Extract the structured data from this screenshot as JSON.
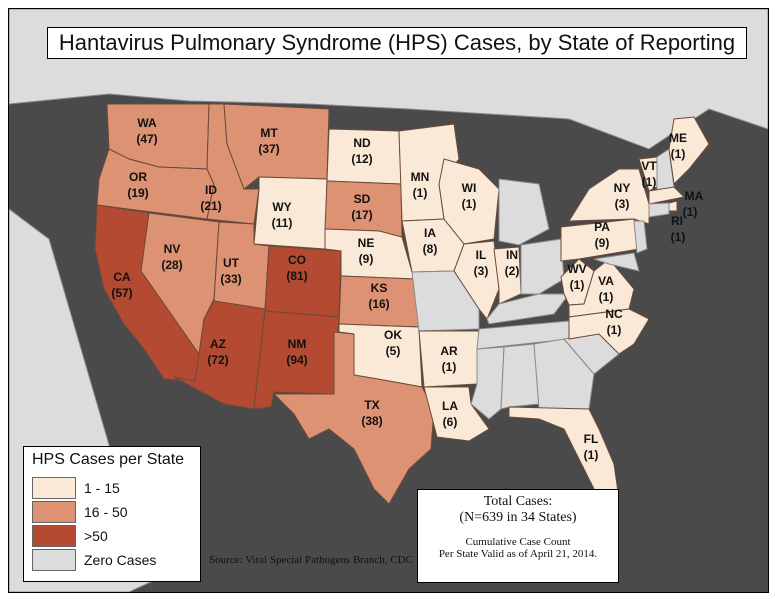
{
  "title": "Hantavirus Pulmonary Syndrome (HPS) Cases, by State of Reporting",
  "colors": {
    "low": "#fbe9d8",
    "mid": "#dd9274",
    "high": "#b44a32",
    "zero": "#dcdcdc",
    "background": "#4a4a4a"
  },
  "legend": {
    "title": "HPS Cases per State",
    "items": [
      {
        "label": "1 - 15",
        "color": "#fbe9d8"
      },
      {
        "label": "16 - 50",
        "color": "#dd9274"
      },
      {
        "label": ">50",
        "color": "#b44a32"
      },
      {
        "label": "Zero Cases",
        "color": "#dcdcdc"
      }
    ]
  },
  "states": {
    "WA": {
      "abbr": "WA",
      "cases": "(47)"
    },
    "OR": {
      "abbr": "OR",
      "cases": "(19)"
    },
    "CA": {
      "abbr": "CA",
      "cases": "(57)"
    },
    "ID": {
      "abbr": "ID",
      "cases": "(21)"
    },
    "NV": {
      "abbr": "NV",
      "cases": "(28)"
    },
    "MT": {
      "abbr": "MT",
      "cases": "(37)"
    },
    "WY": {
      "abbr": "WY",
      "cases": "(11)"
    },
    "UT": {
      "abbr": "UT",
      "cases": "(33)"
    },
    "AZ": {
      "abbr": "AZ",
      "cases": "(72)"
    },
    "CO": {
      "abbr": "CO",
      "cases": "(81)"
    },
    "NM": {
      "abbr": "NM",
      "cases": "(94)"
    },
    "ND": {
      "abbr": "ND",
      "cases": "(12)"
    },
    "SD": {
      "abbr": "SD",
      "cases": "(17)"
    },
    "NE": {
      "abbr": "NE",
      "cases": "(9)"
    },
    "KS": {
      "abbr": "KS",
      "cases": "(16)"
    },
    "OK": {
      "abbr": "OK",
      "cases": "(5)"
    },
    "TX": {
      "abbr": "TX",
      "cases": "(38)"
    },
    "MN": {
      "abbr": "MN",
      "cases": "(1)"
    },
    "IA": {
      "abbr": "IA",
      "cases": "(8)"
    },
    "AR": {
      "abbr": "AR",
      "cases": "(1)"
    },
    "LA": {
      "abbr": "LA",
      "cases": "(6)"
    },
    "WI": {
      "abbr": "WI",
      "cases": "(1)"
    },
    "IL": {
      "abbr": "IL",
      "cases": "(3)"
    },
    "IN": {
      "abbr": "IN",
      "cases": "(2)"
    },
    "WV": {
      "abbr": "WV",
      "cases": "(1)"
    },
    "VA": {
      "abbr": "VA",
      "cases": "(1)"
    },
    "NC": {
      "abbr": "NC",
      "cases": "(1)"
    },
    "PA": {
      "abbr": "PA",
      "cases": "(9)"
    },
    "NY": {
      "abbr": "NY",
      "cases": "(3)"
    },
    "VT": {
      "abbr": "VT",
      "cases": "(1)"
    },
    "ME": {
      "abbr": "ME",
      "cases": "(1)"
    },
    "MA": {
      "abbr": "MA",
      "cases": "(1)"
    },
    "RI": {
      "abbr": "RI",
      "cases": "(1)"
    },
    "FL": {
      "abbr": "FL",
      "cases": "(1)"
    }
  },
  "totals": {
    "line1": "Total Cases:",
    "line2": "(N=639 in 34 States)",
    "line3": "Cumulative Case Count",
    "line4": "Per State Valid as of April 21, 2014."
  },
  "source": "Source: Viral Special Pathogens Branch, CDC"
}
